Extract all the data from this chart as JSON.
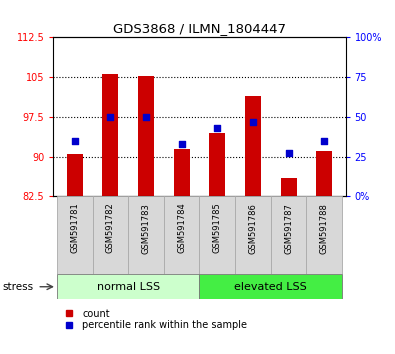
{
  "title": "GDS3868 / ILMN_1804447",
  "samples": [
    "GSM591781",
    "GSM591782",
    "GSM591783",
    "GSM591784",
    "GSM591785",
    "GSM591786",
    "GSM591787",
    "GSM591788"
  ],
  "bar_values": [
    90.5,
    105.5,
    105.2,
    91.5,
    94.5,
    101.5,
    86.0,
    91.0
  ],
  "percentile_values": [
    35,
    50,
    50,
    33,
    43,
    47,
    27,
    35
  ],
  "bar_color": "#cc0000",
  "percentile_color": "#0000cc",
  "ymin": 82.5,
  "ymax": 112.5,
  "yticks": [
    82.5,
    90.0,
    97.5,
    105.0,
    112.5
  ],
  "ytick_labels": [
    "82.5",
    "90",
    "97.5",
    "105",
    "112.5"
  ],
  "y2min": 0,
  "y2max": 100,
  "y2ticks": [
    0,
    25,
    50,
    75,
    100
  ],
  "y2tick_labels": [
    "0%",
    "25",
    "50",
    "75",
    "100%"
  ],
  "gridlines": [
    90.0,
    97.5,
    105.0
  ],
  "group1_label": "normal LSS",
  "group2_label": "elevated LSS",
  "group1_indices": [
    0,
    1,
    2,
    3
  ],
  "group2_indices": [
    4,
    5,
    6,
    7
  ],
  "group1_color": "#ccffcc",
  "group2_color": "#44ee44",
  "stress_label": "stress",
  "legend_count_label": "count",
  "legend_pct_label": "percentile rank within the sample",
  "bar_width": 0.45,
  "figsize": [
    3.95,
    3.54
  ],
  "dpi": 100
}
